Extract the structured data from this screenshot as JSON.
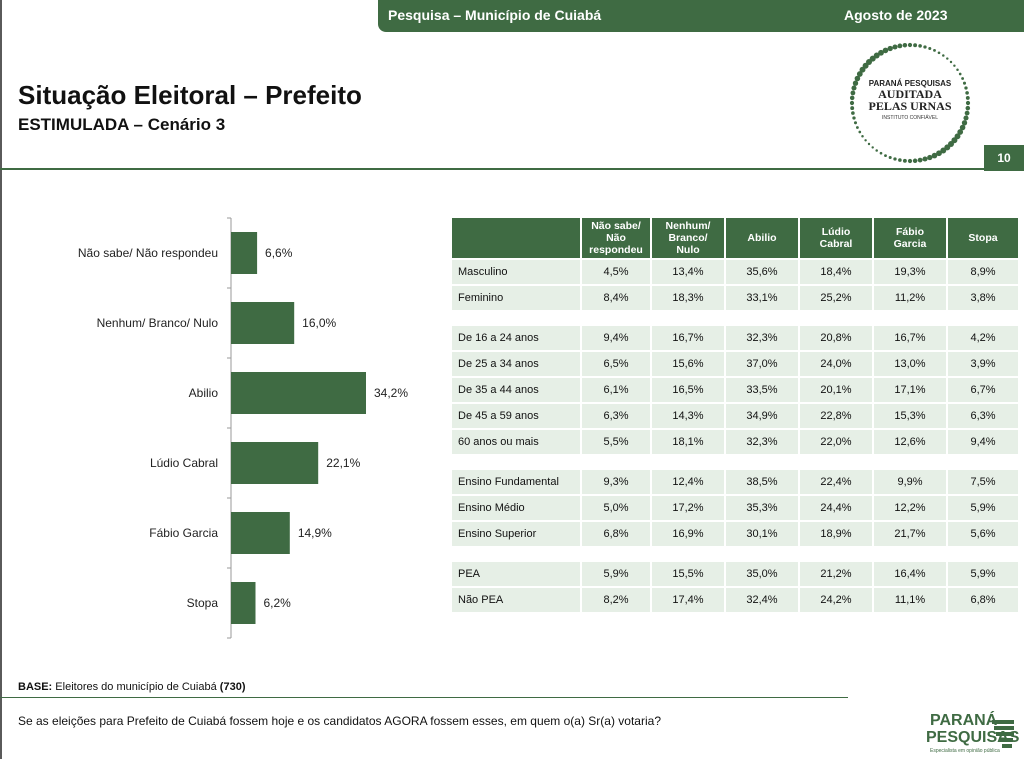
{
  "header": {
    "survey": "Pesquisa – Município de Cuiabá",
    "date": "Agosto de 2023",
    "page": "10"
  },
  "title": "Situação Eleitoral – Prefeito",
  "subtitle": "ESTIMULADA – Cenário 3",
  "seal": {
    "line1": "PARANÁ PESQUISAS",
    "line2": "AUDITADA",
    "line3": "PELAS URNAS",
    "line4": "INSTITUTO CONFIÁVEL"
  },
  "chart_data": {
    "type": "bar",
    "orientation": "horizontal",
    "categories": [
      "Não sabe/ Não respondeu",
      "Nenhum/ Branco/ Nulo",
      "Abilio",
      "Lúdio Cabral",
      "Fábio Garcia",
      "Stopa"
    ],
    "values": [
      6.6,
      16.0,
      34.2,
      22.1,
      14.9,
      6.2
    ],
    "labels": [
      "6,6%",
      "16,0%",
      "34,2%",
      "22,1%",
      "14,9%",
      "6,2%"
    ],
    "unit": "%",
    "color": "#3f6b43"
  },
  "table": {
    "columns": [
      "Não sabe/\nNão\nrespondeu",
      "Nenhum/\nBranco/\nNulo",
      "Abilio",
      "Lúdio\nCabral",
      "Fábio\nGarcia",
      "Stopa"
    ],
    "groups": [
      [
        {
          "label": "Masculino",
          "values": [
            "4,5%",
            "13,4%",
            "35,6%",
            "18,4%",
            "19,3%",
            "8,9%"
          ]
        },
        {
          "label": "Feminino",
          "values": [
            "8,4%",
            "18,3%",
            "33,1%",
            "25,2%",
            "11,2%",
            "3,8%"
          ]
        }
      ],
      [
        {
          "label": "De 16 a 24 anos",
          "values": [
            "9,4%",
            "16,7%",
            "32,3%",
            "20,8%",
            "16,7%",
            "4,2%"
          ]
        },
        {
          "label": "De 25 a 34 anos",
          "values": [
            "6,5%",
            "15,6%",
            "37,0%",
            "24,0%",
            "13,0%",
            "3,9%"
          ]
        },
        {
          "label": "De 35 a 44 anos",
          "values": [
            "6,1%",
            "16,5%",
            "33,5%",
            "20,1%",
            "17,1%",
            "6,7%"
          ]
        },
        {
          "label": "De 45 a 59 anos",
          "values": [
            "6,3%",
            "14,3%",
            "34,9%",
            "22,8%",
            "15,3%",
            "6,3%"
          ]
        },
        {
          "label": "60 anos ou mais",
          "values": [
            "5,5%",
            "18,1%",
            "32,3%",
            "22,0%",
            "12,6%",
            "9,4%"
          ]
        }
      ],
      [
        {
          "label": "Ensino Fundamental",
          "values": [
            "9,3%",
            "12,4%",
            "38,5%",
            "22,4%",
            "9,9%",
            "7,5%"
          ]
        },
        {
          "label": "Ensino Médio",
          "values": [
            "5,0%",
            "17,2%",
            "35,3%",
            "24,4%",
            "12,2%",
            "5,9%"
          ]
        },
        {
          "label": "Ensino Superior",
          "values": [
            "6,8%",
            "16,9%",
            "30,1%",
            "18,9%",
            "21,7%",
            "5,6%"
          ]
        }
      ],
      [
        {
          "label": "PEA",
          "values": [
            "5,9%",
            "15,5%",
            "35,0%",
            "21,2%",
            "16,4%",
            "5,9%"
          ]
        },
        {
          "label": "Não PEA",
          "values": [
            "8,2%",
            "17,4%",
            "32,4%",
            "24,2%",
            "11,1%",
            "6,8%"
          ]
        }
      ]
    ]
  },
  "base": {
    "label": "BASE:",
    "text": "Eleitores do município de Cuiabá",
    "n": "(730)"
  },
  "question": "Se as eleições para Prefeito de Cuiabá fossem hoje e os candidatos AGORA fossem esses, em quem o(a) Sr(a) votaria?",
  "logo": {
    "line1": "PARANÁ",
    "line2": "PESQUISAS",
    "tagline": "Especialista em opinião pública"
  }
}
